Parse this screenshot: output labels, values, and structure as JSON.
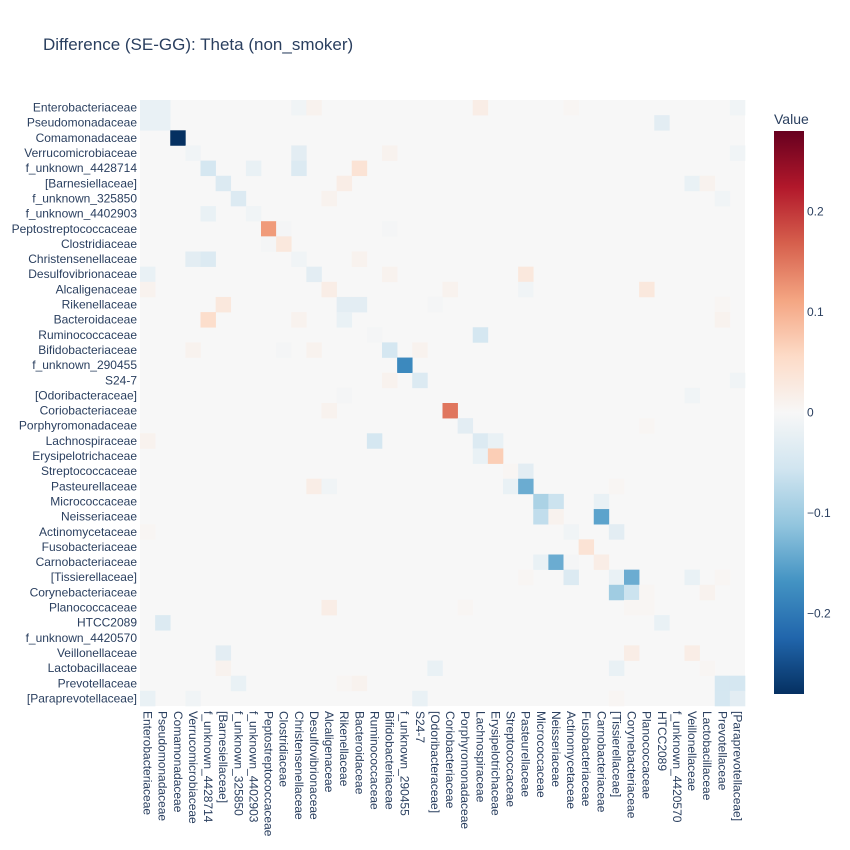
{
  "chart_data": {
    "type": "heatmap",
    "title": "Difference (SE-GG): Theta (non_smoker)",
    "colorbar": {
      "title": "Value",
      "range": [
        -0.28,
        0.28
      ],
      "ticks": [
        {
          "value": 0.2,
          "label": "0.2"
        },
        {
          "value": 0.1,
          "label": "0.1"
        },
        {
          "value": 0,
          "label": "0"
        },
        {
          "value": -0.1,
          "label": "−0.1"
        },
        {
          "value": -0.2,
          "label": "−0.2"
        }
      ],
      "colorscale": [
        [
          0.0,
          "#053061"
        ],
        [
          0.1,
          "#2166ac"
        ],
        [
          0.2,
          "#4393c3"
        ],
        [
          0.3,
          "#92c5de"
        ],
        [
          0.4,
          "#d1e5f0"
        ],
        [
          0.5,
          "#f7f7f7"
        ],
        [
          0.6,
          "#fddbc7"
        ],
        [
          0.7,
          "#f4a582"
        ],
        [
          0.8,
          "#d6604d"
        ],
        [
          0.9,
          "#b2182b"
        ],
        [
          1.0,
          "#67001f"
        ]
      ]
    },
    "labels": [
      "Enterobacteriaceae",
      "Pseudomonadaceae",
      "Comamonadaceae",
      "Verrucomicrobiaceae",
      "f_unknown_4428714",
      "[Barnesiellaceae]",
      "f_unknown_325850",
      "f_unknown_4402903",
      "Peptostreptococcaceae",
      "Clostridiaceae",
      "Christensenellaceae",
      "Desulfovibrionaceae",
      "Alcaligenaceae",
      "Rikenellaceae",
      "Bacteroidaceae",
      "Ruminococcaceae",
      "Bifidobacteriaceae",
      "f_unknown_290455",
      "S24-7",
      "[Odoribacteraceae]",
      "Coriobacteriaceae",
      "Porphyromonadaceae",
      "Lachnospiraceae",
      "Erysipelotrichaceae",
      "Streptococcaceae",
      "Pasteurellaceae",
      "Micrococcaceae",
      "Neisseriaceae",
      "Actinomycetaceae",
      "Fusobacteriaceae",
      "Carnobacteriaceae",
      "[Tissierellaceae]",
      "Corynebacteriaceae",
      "Planococcaceae",
      "HTCC2089",
      "f_unknown_4420570",
      "Veillonellaceae",
      "Lactobacillaceae",
      "Prevotellaceae",
      "[Paraprevotellaceae]"
    ],
    "nonzero_cells": [
      [
        0,
        0,
        -0.02
      ],
      [
        0,
        1,
        -0.02
      ],
      [
        0,
        10,
        -0.01
      ],
      [
        0,
        11,
        0.01
      ],
      [
        0,
        22,
        0.02
      ],
      [
        0,
        28,
        0.005
      ],
      [
        0,
        39,
        -0.01
      ],
      [
        1,
        0,
        -0.02
      ],
      [
        1,
        1,
        -0.02
      ],
      [
        1,
        34,
        -0.03
      ],
      [
        2,
        2,
        -0.28
      ],
      [
        3,
        3,
        -0.01
      ],
      [
        3,
        10,
        -0.03
      ],
      [
        3,
        16,
        0.01
      ],
      [
        3,
        39,
        -0.01
      ],
      [
        4,
        4,
        -0.05
      ],
      [
        4,
        7,
        -0.02
      ],
      [
        4,
        10,
        -0.04
      ],
      [
        4,
        14,
        0.04
      ],
      [
        5,
        5,
        -0.04
      ],
      [
        5,
        13,
        0.02
      ],
      [
        5,
        36,
        -0.02
      ],
      [
        5,
        37,
        0.01
      ],
      [
        6,
        6,
        -0.04
      ],
      [
        6,
        12,
        0.01
      ],
      [
        6,
        38,
        -0.01
      ],
      [
        7,
        4,
        -0.02
      ],
      [
        7,
        7,
        -0.01
      ],
      [
        8,
        8,
        0.12
      ],
      [
        8,
        9,
        -0.005
      ],
      [
        8,
        16,
        -0.005
      ],
      [
        9,
        8,
        -0.005
      ],
      [
        9,
        9,
        0.03
      ],
      [
        10,
        3,
        -0.03
      ],
      [
        10,
        4,
        -0.04
      ],
      [
        10,
        10,
        -0.01
      ],
      [
        10,
        14,
        0.01
      ],
      [
        11,
        0,
        -0.02
      ],
      [
        11,
        11,
        -0.03
      ],
      [
        11,
        16,
        0.01
      ],
      [
        11,
        25,
        0.03
      ],
      [
        12,
        0,
        0.01
      ],
      [
        12,
        12,
        0.02
      ],
      [
        12,
        20,
        0.01
      ],
      [
        12,
        25,
        -0.01
      ],
      [
        12,
        33,
        0.03
      ],
      [
        13,
        5,
        0.03
      ],
      [
        13,
        13,
        -0.03
      ],
      [
        13,
        14,
        -0.03
      ],
      [
        13,
        19,
        -0.005
      ],
      [
        13,
        38,
        0.005
      ],
      [
        14,
        4,
        0.05
      ],
      [
        14,
        10,
        0.01
      ],
      [
        14,
        13,
        -0.02
      ],
      [
        14,
        38,
        0.01
      ],
      [
        15,
        15,
        -0.005
      ],
      [
        15,
        22,
        -0.05
      ],
      [
        16,
        3,
        0.01
      ],
      [
        16,
        9,
        -0.005
      ],
      [
        16,
        11,
        0.01
      ],
      [
        16,
        16,
        -0.05
      ],
      [
        16,
        18,
        0.01
      ],
      [
        17,
        17,
        -0.18
      ],
      [
        18,
        16,
        0.01
      ],
      [
        18,
        18,
        -0.04
      ],
      [
        18,
        39,
        -0.01
      ],
      [
        19,
        13,
        -0.005
      ],
      [
        19,
        36,
        -0.01
      ],
      [
        20,
        12,
        0.01
      ],
      [
        20,
        20,
        0.15
      ],
      [
        21,
        21,
        -0.03
      ],
      [
        21,
        33,
        0.005
      ],
      [
        22,
        0,
        0.01
      ],
      [
        22,
        15,
        -0.05
      ],
      [
        22,
        22,
        -0.04
      ],
      [
        22,
        23,
        -0.02
      ],
      [
        23,
        22,
        -0.02
      ],
      [
        23,
        23,
        0.07
      ],
      [
        24,
        24,
        0.005
      ],
      [
        24,
        25,
        -0.03
      ],
      [
        25,
        11,
        0.02
      ],
      [
        25,
        12,
        -0.01
      ],
      [
        25,
        24,
        -0.02
      ],
      [
        25,
        25,
        -0.14
      ],
      [
        25,
        31,
        0.005
      ],
      [
        26,
        26,
        -0.09
      ],
      [
        26,
        27,
        -0.06
      ],
      [
        26,
        30,
        -0.02
      ],
      [
        27,
        26,
        -0.07
      ],
      [
        27,
        27,
        0.01
      ],
      [
        27,
        30,
        -0.15
      ],
      [
        28,
        0,
        0.005
      ],
      [
        28,
        28,
        -0.01
      ],
      [
        28,
        31,
        -0.03
      ],
      [
        29,
        29,
        0.04
      ],
      [
        30,
        26,
        -0.02
      ],
      [
        30,
        27,
        -0.14
      ],
      [
        30,
        28,
        -0.005
      ],
      [
        30,
        30,
        0.02
      ],
      [
        31,
        25,
        0.005
      ],
      [
        31,
        28,
        -0.04
      ],
      [
        31,
        31,
        -0.02
      ],
      [
        31,
        32,
        -0.14
      ],
      [
        31,
        36,
        -0.02
      ],
      [
        31,
        38,
        0.005
      ],
      [
        32,
        31,
        -0.1
      ],
      [
        32,
        32,
        -0.06
      ],
      [
        32,
        33,
        0.005
      ],
      [
        32,
        37,
        0.01
      ],
      [
        33,
        12,
        0.02
      ],
      [
        33,
        21,
        0.005
      ],
      [
        33,
        32,
        0.005
      ],
      [
        33,
        33,
        0.005
      ],
      [
        34,
        1,
        -0.04
      ],
      [
        34,
        34,
        -0.02
      ],
      [
        36,
        5,
        -0.03
      ],
      [
        36,
        32,
        0.02
      ],
      [
        36,
        36,
        0.02
      ],
      [
        37,
        5,
        0.01
      ],
      [
        37,
        19,
        -0.02
      ],
      [
        37,
        31,
        -0.02
      ],
      [
        37,
        37,
        0.005
      ],
      [
        38,
        6,
        -0.02
      ],
      [
        38,
        13,
        0.005
      ],
      [
        38,
        14,
        0.01
      ],
      [
        38,
        38,
        -0.05
      ],
      [
        38,
        39,
        -0.05
      ],
      [
        39,
        0,
        -0.02
      ],
      [
        39,
        3,
        -0.01
      ],
      [
        39,
        18,
        -0.02
      ],
      [
        39,
        31,
        0.005
      ],
      [
        39,
        38,
        -0.05
      ],
      [
        39,
        39,
        -0.03
      ]
    ]
  }
}
